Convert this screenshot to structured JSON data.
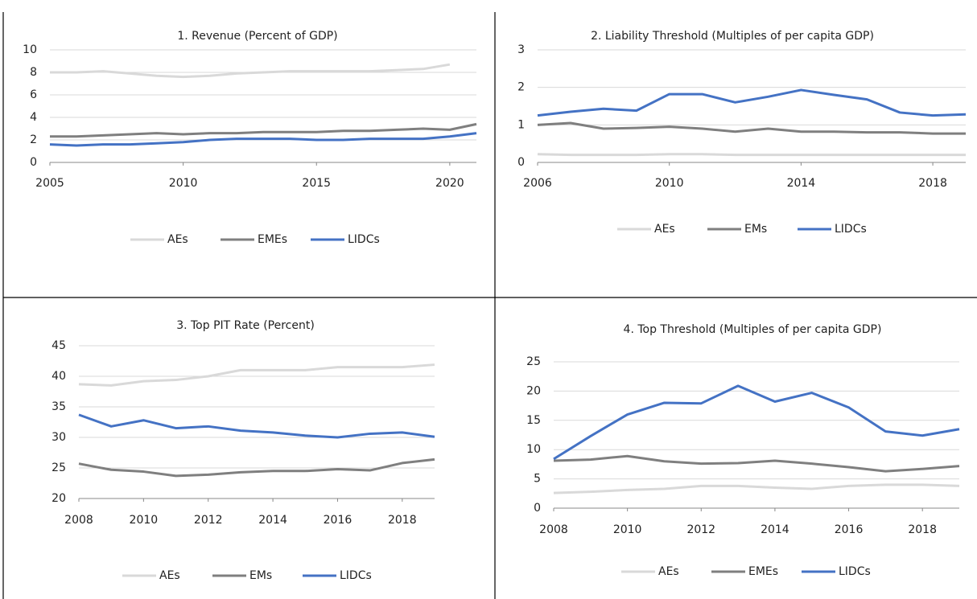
{
  "chart_data": [
    {
      "type": "line",
      "title": "1. Revenue (Percent of GDP)",
      "x": [
        2005,
        2006,
        2007,
        2008,
        2009,
        2010,
        2011,
        2012,
        2013,
        2014,
        2015,
        2016,
        2017,
        2018,
        2019,
        2020,
        2021
      ],
      "xlim": [
        2005,
        2021
      ],
      "xticks": [
        2005,
        2010,
        2015,
        2020
      ],
      "ylim": [
        0,
        10
      ],
      "yticks": [
        0,
        2,
        4,
        6,
        8,
        10
      ],
      "grid": true,
      "series": [
        {
          "name": "AEs",
          "color": "#d9d9d9",
          "values": [
            8,
            8,
            8.1,
            7.9,
            7.7,
            7.6,
            7.7,
            7.9,
            8,
            8.1,
            8.1,
            8.1,
            8.1,
            8.2,
            8.3,
            8.7,
            null
          ]
        },
        {
          "name": "EMEs",
          "color": "#7f7f7f",
          "values": [
            2.3,
            2.3,
            2.4,
            2.5,
            2.6,
            2.5,
            2.6,
            2.6,
            2.7,
            2.7,
            2.7,
            2.8,
            2.8,
            2.9,
            3.0,
            2.9,
            3.4
          ]
        },
        {
          "name": "LIDCs",
          "color": "#4472c4",
          "values": [
            1.6,
            1.5,
            1.6,
            1.6,
            1.7,
            1.8,
            2.0,
            2.1,
            2.1,
            2.1,
            2.0,
            2.0,
            2.1,
            2.1,
            2.1,
            2.3,
            2.6
          ]
        }
      ]
    },
    {
      "type": "line",
      "title": "2. Liability Threshold (Multiples of per capita GDP)",
      "x": [
        2006,
        2007,
        2008,
        2009,
        2010,
        2011,
        2012,
        2013,
        2014,
        2015,
        2016,
        2017,
        2018,
        2019
      ],
      "xlim": [
        2006,
        2019
      ],
      "xticks": [
        2006,
        2010,
        2014,
        2018
      ],
      "ylim": [
        0,
        3
      ],
      "yticks": [
        0,
        1,
        2,
        3
      ],
      "grid": true,
      "series": [
        {
          "name": "AEs",
          "color": "#d9d9d9",
          "values": [
            0.22,
            0.2,
            0.2,
            0.2,
            0.22,
            0.22,
            0.2,
            0.2,
            0.2,
            0.2,
            0.2,
            0.2,
            0.2,
            0.2
          ]
        },
        {
          "name": "EMs",
          "color": "#7f7f7f",
          "values": [
            1.0,
            1.05,
            0.9,
            0.92,
            0.95,
            0.9,
            0.82,
            0.9,
            0.82,
            0.82,
            0.8,
            0.8,
            0.77,
            0.77
          ]
        },
        {
          "name": "LIDCs",
          "color": "#4472c4",
          "values": [
            1.25,
            1.35,
            1.43,
            1.38,
            1.82,
            1.82,
            1.6,
            1.75,
            1.93,
            1.8,
            1.68,
            1.33,
            1.25,
            1.28
          ]
        }
      ]
    },
    {
      "type": "line",
      "title": "3. Top PIT Rate (Percent)",
      "x": [
        2008,
        2009,
        2010,
        2011,
        2012,
        2013,
        2014,
        2015,
        2016,
        2017,
        2018,
        2019
      ],
      "xlim": [
        2008,
        2019
      ],
      "xticks": [
        2008,
        2010,
        2012,
        2014,
        2016,
        2018
      ],
      "ylim": [
        20,
        45
      ],
      "yticks": [
        20,
        25,
        30,
        35,
        40,
        45
      ],
      "grid": true,
      "series": [
        {
          "name": "AEs",
          "color": "#d9d9d9",
          "values": [
            38.7,
            38.5,
            39.2,
            39.4,
            40,
            41,
            41,
            41,
            41.5,
            41.5,
            41.5,
            41.9
          ]
        },
        {
          "name": "EMs",
          "color": "#7f7f7f",
          "values": [
            25.7,
            24.7,
            24.4,
            23.7,
            23.9,
            24.3,
            24.5,
            24.5,
            24.8,
            24.6,
            25.8,
            26.4
          ]
        },
        {
          "name": "LIDCs",
          "color": "#4472c4",
          "values": [
            33.7,
            31.8,
            32.8,
            31.5,
            31.8,
            31.1,
            30.8,
            30.3,
            30,
            30.6,
            30.8,
            30.1
          ]
        }
      ]
    },
    {
      "type": "line",
      "title": "4. Top Threshold (Multiples of per capita GDP)",
      "x": [
        2008,
        2009,
        2010,
        2011,
        2012,
        2013,
        2014,
        2015,
        2016,
        2017,
        2018,
        2019
      ],
      "xlim": [
        2008,
        2019
      ],
      "xticks": [
        2008,
        2010,
        2012,
        2014,
        2016,
        2018
      ],
      "ylim": [
        0,
        25
      ],
      "yticks": [
        0,
        5,
        10,
        15,
        20,
        25
      ],
      "grid": true,
      "series": [
        {
          "name": "AEs",
          "color": "#d9d9d9",
          "values": [
            2.6,
            2.8,
            3.1,
            3.3,
            3.8,
            3.8,
            3.5,
            3.3,
            3.8,
            4.0,
            4.0,
            3.8
          ]
        },
        {
          "name": "EMEs",
          "color": "#7f7f7f",
          "values": [
            8.1,
            8.3,
            8.9,
            8.0,
            7.6,
            7.7,
            8.1,
            7.6,
            7.0,
            6.3,
            6.7,
            7.2
          ]
        },
        {
          "name": "LIDCs",
          "color": "#4472c4",
          "values": [
            8.4,
            12.3,
            16.0,
            18.0,
            17.9,
            20.9,
            18.2,
            19.7,
            17.2,
            13.1,
            12.4,
            13.5
          ]
        }
      ]
    }
  ]
}
